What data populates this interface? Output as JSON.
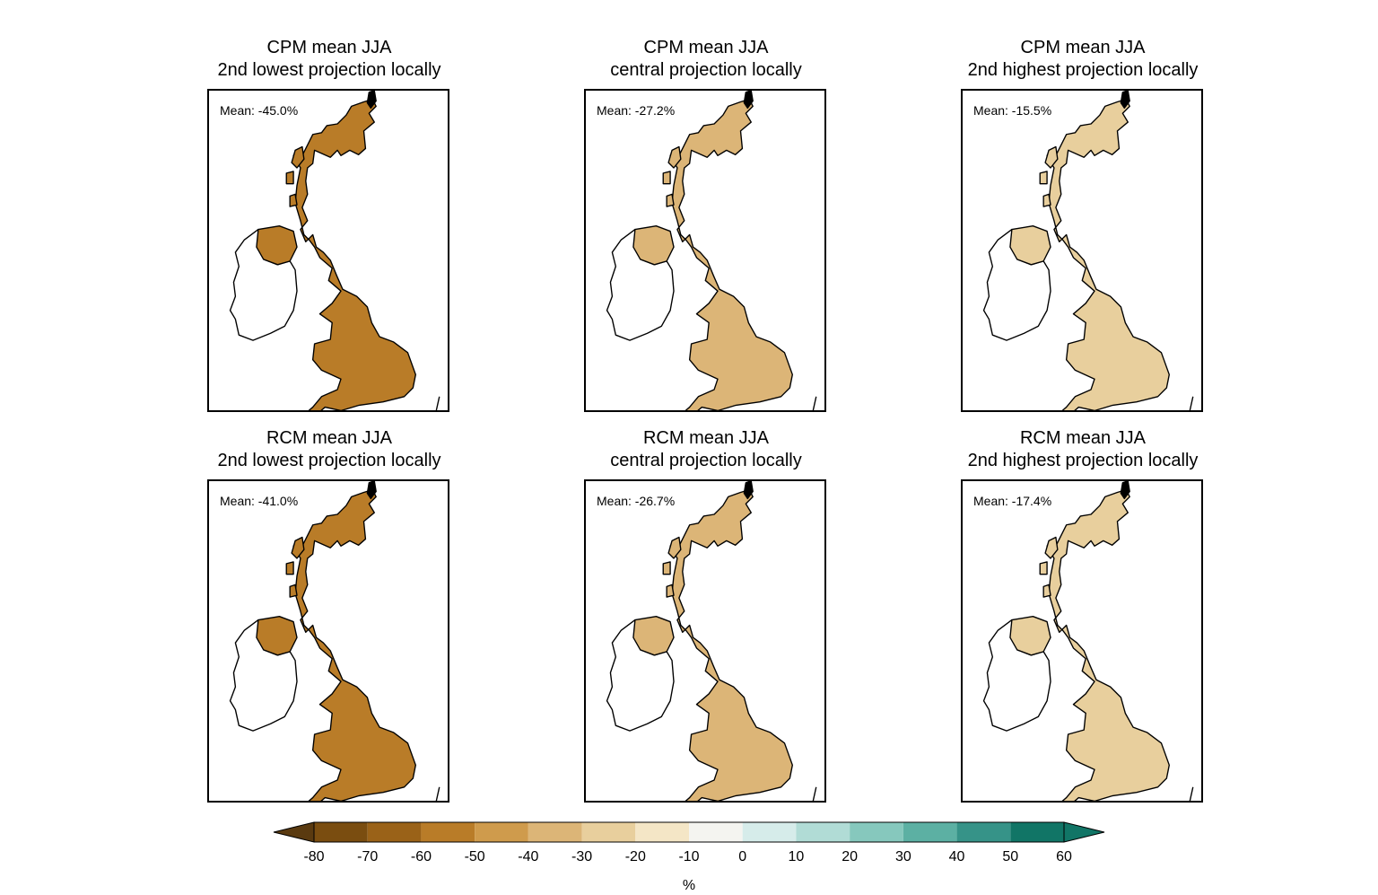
{
  "panels": [
    {
      "title_line1": "CPM mean JJA",
      "title_line2": "2nd lowest projection locally",
      "mean": "Mean: -45.0%",
      "fill_level": -50
    },
    {
      "title_line1": "CPM mean JJA",
      "title_line2": "central projection locally",
      "mean": "Mean: -27.2%",
      "fill_level": -30
    },
    {
      "title_line1": "CPM mean JJA",
      "title_line2": "2nd highest projection locally",
      "mean": "Mean: -15.5%",
      "fill_level": -15
    },
    {
      "title_line1": "RCM mean JJA",
      "title_line2": "2nd lowest projection locally",
      "mean": "Mean: -41.0%",
      "fill_level": -50
    },
    {
      "title_line1": "RCM mean JJA",
      "title_line2": "central projection locally",
      "mean": "Mean: -26.7%",
      "fill_level": -30
    },
    {
      "title_line1": "RCM mean JJA",
      "title_line2": "2nd highest projection locally",
      "mean": "Mean: -17.4%",
      "fill_level": -15
    }
  ],
  "colorbar": {
    "ticks": [
      "-80",
      "-70",
      "-60",
      "-50",
      "-40",
      "-30",
      "-20",
      "-10",
      "0",
      "10",
      "20",
      "30",
      "40",
      "50",
      "60"
    ],
    "colors": [
      "#5a3a10",
      "#7a4d10",
      "#9a6218",
      "#b97c28",
      "#cf9b4c",
      "#dcb577",
      "#e8cf9d",
      "#f4e6c6",
      "#f4f4f0",
      "#d6ecea",
      "#b1dcd6",
      "#86c8bd",
      "#5cb0a3",
      "#369388",
      "#117566"
    ],
    "unit": "%"
  }
}
